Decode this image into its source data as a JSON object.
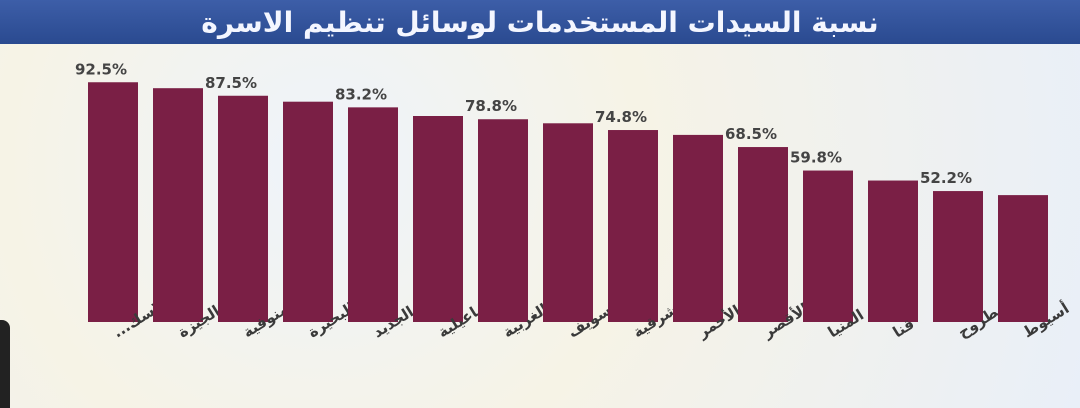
{
  "chart_data": {
    "type": "bar",
    "title": "نسبة السيدات المستخدمات لوسائل تنظيم الاسرة",
    "categories": [
      "الإسك...",
      "الجيزة",
      "المنوفية",
      "البحيرة",
      "الوادى الجديد",
      "الإسماعيلية",
      "الغربية",
      "بنى سويف",
      "الشرقية",
      "البحر الأحمر",
      "الأقصر",
      "المنيا",
      "قنا",
      "مطروح",
      "أسيوط"
    ],
    "values": [
      92.5,
      90.3,
      87.5,
      85.3,
      83.2,
      80.0,
      78.8,
      77.3,
      74.8,
      73.0,
      68.5,
      59.8,
      56.1,
      52.2,
      50.7
    ],
    "data_labels": [
      "92.5%",
      null,
      "87.5%",
      null,
      "83.2%",
      null,
      "78.8%",
      null,
      "74.8%",
      null,
      "68.5%",
      "59.8%",
      null,
      "52.2%",
      null
    ],
    "unit": "%",
    "ylim": [
      0,
      100
    ],
    "grid": false,
    "legend": "none",
    "colors": {
      "bar": "#7a1f45",
      "title_bar": "#2e4f9a",
      "title_text": "#f4f6ff"
    }
  }
}
